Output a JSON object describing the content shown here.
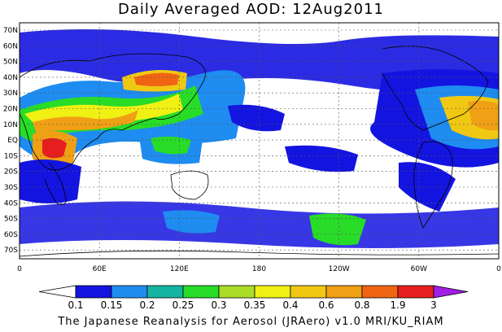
{
  "title": "Daily Averaged AOD: 12Aug2011",
  "footer": "The Japanese Reanalysis for Aerosol (JRAero) v1.0 MRI/KU_RIAM",
  "lat_labels": [
    "70N",
    "60N",
    "50N",
    "40N",
    "30N",
    "20N",
    "10N",
    "EQ",
    "10S",
    "20S",
    "30S",
    "40S",
    "50S",
    "60S",
    "70S"
  ],
  "lon_labels": [
    "0",
    "60E",
    "120E",
    "180",
    "120W",
    "60W",
    "0"
  ],
  "colorbar": {
    "levels": [
      "0.1",
      "0.15",
      "0.2",
      "0.25",
      "0.3",
      "0.35",
      "0.4",
      "0.6",
      "0.8",
      "1.9",
      "3"
    ],
    "colors": [
      "#1414e0",
      "#1e8cf0",
      "#14b4a0",
      "#28dc28",
      "#aadc28",
      "#f0f014",
      "#f0c814",
      "#f0a014",
      "#f06414",
      "#e61e1e",
      "#a01ee6"
    ]
  }
}
